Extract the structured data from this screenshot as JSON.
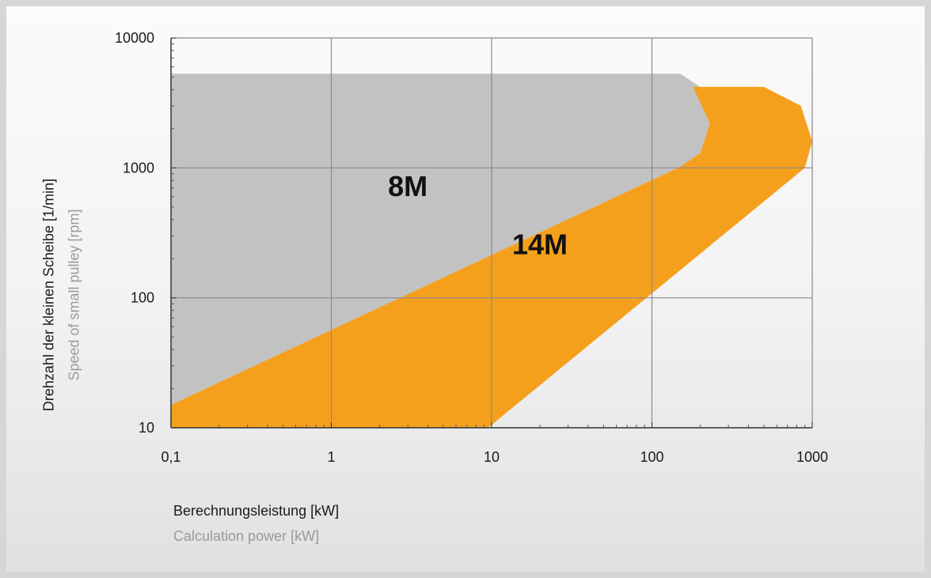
{
  "chart_data": {
    "type": "area",
    "xscale": "log",
    "yscale": "log",
    "xlim": [
      0.1,
      1000
    ],
    "ylim": [
      10,
      10000
    ],
    "x_ticks": [
      "0,1",
      "1",
      "10",
      "100",
      "1000"
    ],
    "y_ticks": [
      "10",
      "100",
      "1000",
      "10000"
    ],
    "grid": true,
    "xlabel": "Berechnungsleistung [kW]",
    "xlabel_secondary": "Calculation power [kW]",
    "ylabel": "Drehzahl der kleinen Scheibe [1/min]",
    "ylabel_secondary": "Speed of small pulley [rpm]",
    "series": [
      {
        "name": "8M",
        "color": "#c2c2c2",
        "label_at": [
          3,
          700
        ],
        "points": [
          [
            0.1,
            15
          ],
          [
            150,
            1020
          ],
          [
            200,
            1300
          ],
          [
            230,
            2200
          ],
          [
            200,
            4200
          ],
          [
            150,
            5300
          ],
          [
            0.1,
            5300
          ]
        ]
      },
      {
        "name": "14M",
        "color": "#f5a01d",
        "label_at": [
          20,
          250
        ],
        "points": [
          [
            0.1,
            10
          ],
          [
            9.5,
            10
          ],
          [
            900,
            1000
          ],
          [
            1000,
            1600
          ],
          [
            850,
            3000
          ],
          [
            500,
            4200
          ],
          [
            180,
            4200
          ],
          [
            230,
            2200
          ],
          [
            200,
            1300
          ],
          [
            150,
            1020
          ],
          [
            0.1,
            15
          ]
        ]
      }
    ]
  }
}
